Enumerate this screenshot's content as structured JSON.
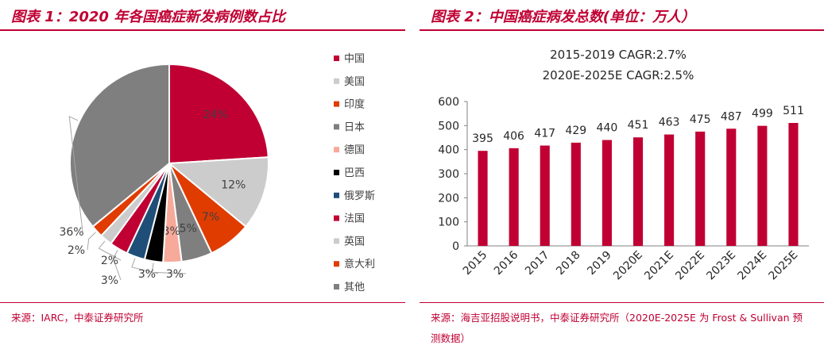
{
  "left_panel": {
    "title": "图表 1：2020 年各国癌症新发病例数占比",
    "source": "来源：IARC，中泰证券研究所"
  },
  "right_panel": {
    "title": "图表 2：中国癌症病发总数(单位：万人）",
    "source": "来源：海吉亚招股说明书，中泰证券研究所（2020E-2025E 为 Frost & Sullivan 预测数据）"
  },
  "colors": {
    "accent": "#c00033"
  },
  "chart_data": [
    {
      "type": "pie",
      "title": "",
      "start_angle_deg": 0,
      "direction": "clockwise",
      "legend_position": "right",
      "slices": [
        {
          "name": "中国",
          "value": 24,
          "label": "24%",
          "color": "#c00033"
        },
        {
          "name": "美国",
          "value": 12,
          "label": "12%",
          "color": "#cccccc"
        },
        {
          "name": "印度",
          "value": 7,
          "label": "7%",
          "color": "#e03c00"
        },
        {
          "name": "日本",
          "value": 5,
          "label": "5%",
          "color": "#7f7f7f"
        },
        {
          "name": "德国",
          "value": 3,
          "label": "3%",
          "color": "#f7a99a"
        },
        {
          "name": "巴西",
          "value": 3,
          "label": "3%",
          "color": "#000000"
        },
        {
          "name": "俄罗斯",
          "value": 3,
          "label": "3%",
          "color": "#1f4e79"
        },
        {
          "name": "法国",
          "value": 3,
          "label": "3%",
          "color": "#c00033"
        },
        {
          "name": "英国",
          "value": 2,
          "label": "2%",
          "color": "#cccccc"
        },
        {
          "name": "意大利",
          "value": 2,
          "label": "2%",
          "color": "#e03c00"
        },
        {
          "name": "其他",
          "value": 36,
          "label": "36%",
          "color": "#7f7f7f"
        }
      ]
    },
    {
      "type": "bar",
      "title": "",
      "annotations": [
        "2015-2019 CAGR:2.7%",
        "2020E-2025E CAGR:2.5%"
      ],
      "categories": [
        "2015",
        "2016",
        "2017",
        "2018",
        "2019",
        "2020E",
        "2021E",
        "2022E",
        "2023E",
        "2024E",
        "2025E"
      ],
      "values": [
        395,
        406,
        417,
        429,
        440,
        451,
        463,
        475,
        487,
        499,
        511
      ],
      "ylim": [
        0,
        600
      ],
      "yticks": [
        0,
        100,
        200,
        300,
        400,
        500,
        600
      ],
      "xlabel": "",
      "ylabel": "",
      "bar_color": "#c00033",
      "grid": false,
      "legend": false
    }
  ]
}
